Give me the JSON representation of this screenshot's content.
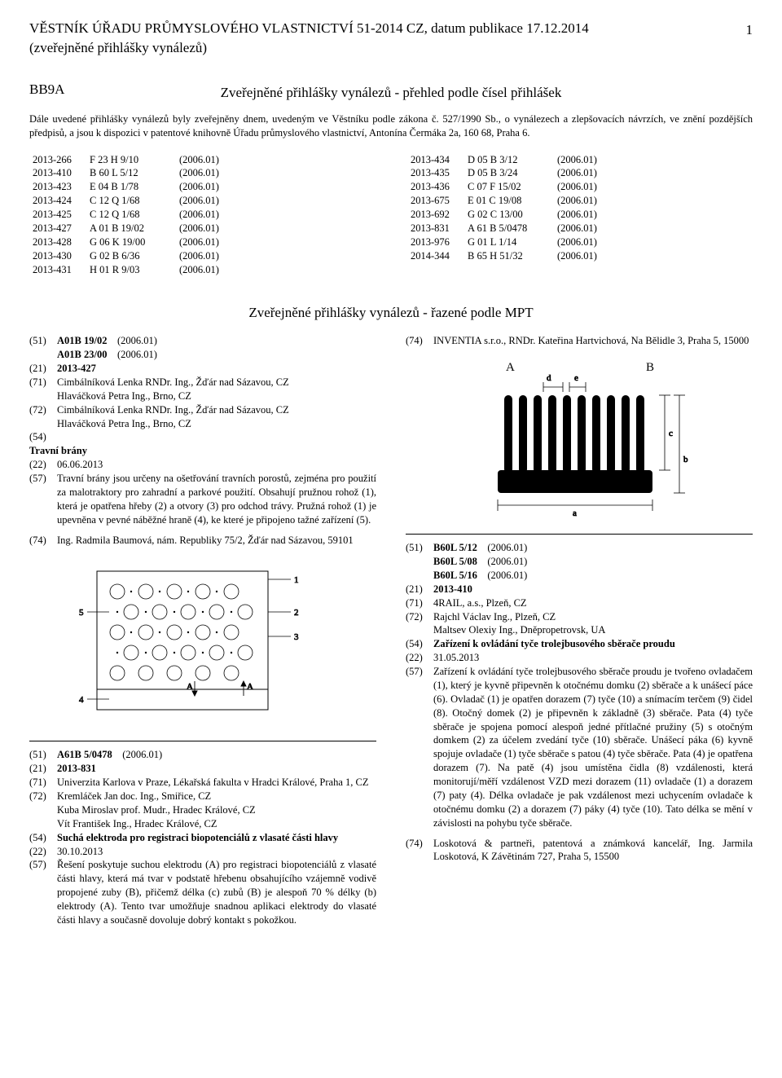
{
  "header": {
    "title": "VĚSTNÍK ÚŘADU PRŮMYSLOVÉHO VLASTNICTVÍ 51-2014 CZ, datum publikace 17.12.2014",
    "subtitle": "(zveřejněné přihlášky vynálezů)",
    "page": "1"
  },
  "section": {
    "code": "BB9A",
    "heading": "Zveřejněné přihlášky vynálezů - přehled podle čísel přihlášek",
    "intro": "Dále uvedené přihlášky vynálezů byly zveřejněny dnem, uvedeným ve Věstníku podle zákona č. 527/1990 Sb., o vynálezech a zlepšovacích návrzích, ve znění pozdějších předpisů, a jsou k dispozici v patentové knihovně Úřadu průmyslového vlastnictví, Antonína Čermáka 2a, 160 68, Praha 6."
  },
  "index_left": [
    [
      "2013-266",
      "F 23 H 9/10",
      "(2006.01)"
    ],
    [
      "2013-410",
      "B 60 L 5/12",
      "(2006.01)"
    ],
    [
      "2013-423",
      "E 04 B 1/78",
      "(2006.01)"
    ],
    [
      "2013-424",
      "C 12 Q 1/68",
      "(2006.01)"
    ],
    [
      "2013-425",
      "C 12 Q 1/68",
      "(2006.01)"
    ],
    [
      "2013-427",
      "A 01 B 19/02",
      "(2006.01)"
    ],
    [
      "2013-428",
      "G 06 K 19/00",
      "(2006.01)"
    ],
    [
      "2013-430",
      "G 02 B 6/36",
      "(2006.01)"
    ],
    [
      "2013-431",
      "H 01 R 9/03",
      "(2006.01)"
    ]
  ],
  "index_right": [
    [
      "2013-434",
      "D 05 B 3/12",
      "(2006.01)"
    ],
    [
      "2013-435",
      "D 05 B 3/24",
      "(2006.01)"
    ],
    [
      "2013-436",
      "C 07 F 15/02",
      "(2006.01)"
    ],
    [
      "2013-675",
      "E 01 C 19/08",
      "(2006.01)"
    ],
    [
      "2013-692",
      "G 02 C 13/00",
      "(2006.01)"
    ],
    [
      "2013-831",
      "A 61 B 5/0478",
      "(2006.01)"
    ],
    [
      "2013-976",
      "G 01 L 1/14",
      "(2006.01)"
    ],
    [
      "2014-344",
      "B 65 H 51/32",
      "(2006.01)"
    ]
  ],
  "mpt_heading": "Zveřejněné přihlášky vynálezů - řazené podle MPT",
  "entry1": {
    "l51a": "A01B 19/02",
    "l51a_ver": "(2006.01)",
    "l51b": "A01B 23/00",
    "l51b_ver": "(2006.01)",
    "l21": "2013-427",
    "l71": "Cimbálníková Lenka RNDr. Ing., Žďár nad Sázavou, CZ\nHlaváčková Petra Ing., Brno, CZ",
    "l72": "Cimbálníková Lenka RNDr. Ing., Žďár nad Sázavou, CZ\nHlaváčková Petra Ing., Brno, CZ",
    "l54_label": "(54)",
    "l54_title": "Travní brány",
    "l22": "06.06.2013",
    "l57": "Travní brány jsou určeny na ošetřování travních porostů, zejména pro použití za malotraktory pro zahradní a parkové použití. Obsahují pružnou rohož (1), která je opatřena hřeby (2) a otvory (3) pro odchod trávy. Pružná rohož (1) je upevněna v pevné náběžné hraně (4), ke které je připojeno tažné zařízení (5).",
    "l74": "Ing. Radmila Baumová, nám. Republiky 75/2, Žďár nad Sázavou, 59101"
  },
  "entry2": {
    "l51": "A61B 5/0478",
    "l51_ver": "(2006.01)",
    "l21": "2013-831",
    "l71": "Univerzita Karlova v Praze, Lékařská fakulta v Hradci Králové, Praha 1, CZ",
    "l72": "Kremláček Jan doc. Ing., Smiřice, CZ\nKuba Miroslav prof. Mudr., Hradec Králové, CZ\nVít František Ing., Hradec Králové, CZ",
    "l54": "Suchá elektroda pro registraci biopotenciálů z vlasaté části hlavy",
    "l22": "30.10.2013",
    "l57": "Řešení poskytuje suchou elektrodu (A) pro registraci biopotenciálů z vlasaté části hlavy, která má tvar v podstatě hřebenu obsahujícího vzájemně vodivě propojené zuby (B), přičemž délka (c) zubů (B) je alespoň 70 % délky (b) elektrody (A). Tento tvar umožňuje snadnou aplikaci elektrody do vlasaté části hlavy a současně dovoluje dobrý kontakt s pokožkou."
  },
  "entry_inventia": {
    "l74": "INVENTIA s.r.o., RNDr. Kateřina Hartvichová, Na Bělidle 3, Praha 5, 15000"
  },
  "entry3": {
    "l51a": "B60L 5/12",
    "l51a_ver": "(2006.01)",
    "l51b": "B60L 5/08",
    "l51b_ver": "(2006.01)",
    "l51c": "B60L 5/16",
    "l51c_ver": "(2006.01)",
    "l21": "2013-410",
    "l71": "4RAIL, a.s., Plzeň, CZ",
    "l72": "Rajchl Václav Ing., Plzeň, CZ\nMaltsev Olexiy Ing., Dněpropetrovsk, UA",
    "l54": "Zařízení k ovládání tyče trolejbusového sběrače proudu",
    "l22": "31.05.2013",
    "l57": "Zařízení k ovládání tyče trolejbusového sběrače proudu je tvořeno ovladačem (1), který je kyvně připevněn k otočnému domku (2) sběrače a k unášecí páce (6). Ovladač (1) je opatřen dorazem (7) tyče (10) a snímacím terčem (9) čidel (8). Otočný domek (2) je připevněn k základně (3) sběrače. Pata (4) tyče sběrače je spojena pomocí alespoň jedné přítlačné pružiny (5) s otočným domkem (2) za účelem zvedání tyče (10) sběrače. Unášecí páka (6) kyvně spojuje ovladače (1) tyče sběrače s patou (4) tyče sběrače. Pata (4) je opatřena dorazem (7). Na patě (4) jsou umístěna čidla (8) vzdálenosti, která monitorují/měří vzdálenost VZD mezi dorazem (11) ovladače (1) a dorazem (7) paty (4). Délka ovladače je pak vzdálenost mezi uchycením ovladače k otočnému domku (2) a dorazem (7) páky (4) tyče (10). Tato délka se mění v závislosti na pohybu tyče sběrače.",
    "l74": "Loskotová & partneři, patentová a známková kancelář, Ing. Jarmila Loskotová, K Závětinám 727, Praha 5, 15500"
  },
  "figA": {
    "A": "A",
    "B": "B",
    "a": "a",
    "b": "b",
    "c": "c",
    "d": "d",
    "e": "e"
  },
  "figB": {
    "n1": "1",
    "n2": "2",
    "n3": "3",
    "n4": "4",
    "n5": "5",
    "A": "A",
    "pA": "A"
  }
}
